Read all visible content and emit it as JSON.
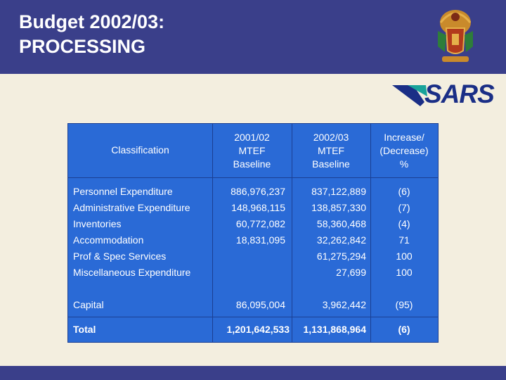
{
  "title_line1": "Budget 2002/03:",
  "title_line2": "PROCESSING",
  "logo": {
    "sars_text": "SARS"
  },
  "colors": {
    "header": "#3a3f8a",
    "table": "#2a6ad6",
    "background": "#f3eedf"
  },
  "table": {
    "headers": {
      "classification": "Classification",
      "col1": [
        "2001/02",
        "MTEF",
        "Baseline"
      ],
      "col2": [
        "2002/03",
        "MTEF",
        "Baseline"
      ],
      "col3": [
        "Increase/",
        "(Decrease)",
        "%"
      ]
    },
    "rows": [
      {
        "label": "Personnel Expenditure",
        "v2001": "886,976,237",
        "v2002": "837,122,889",
        "pct": "(6)"
      },
      {
        "label": "Administrative Expenditure",
        "v2001": "148,968,115",
        "v2002": "138,857,330",
        "pct": "(7)"
      },
      {
        "label": "Inventories",
        "v2001": "60,772,082",
        "v2002": "58,360,468",
        "pct": "(4)"
      },
      {
        "label": "Accommodation",
        "v2001": "18,831,095",
        "v2002": "32,262,842",
        "pct": "71"
      },
      {
        "label": "Prof & Spec Services",
        "v2001": "",
        "v2002": "61,275,294",
        "pct": "100"
      },
      {
        "label": "Miscellaneous Expenditure",
        "v2001": "",
        "v2002": "27,699",
        "pct": "100"
      }
    ],
    "capital": {
      "label": "Capital",
      "v2001": "86,095,004",
      "v2002": "3,962,442",
      "pct": "(95)"
    },
    "total": {
      "label": "Total",
      "v2001": "1,201,642,533",
      "v2002": "1,131,868,964",
      "pct": "(6)"
    }
  }
}
